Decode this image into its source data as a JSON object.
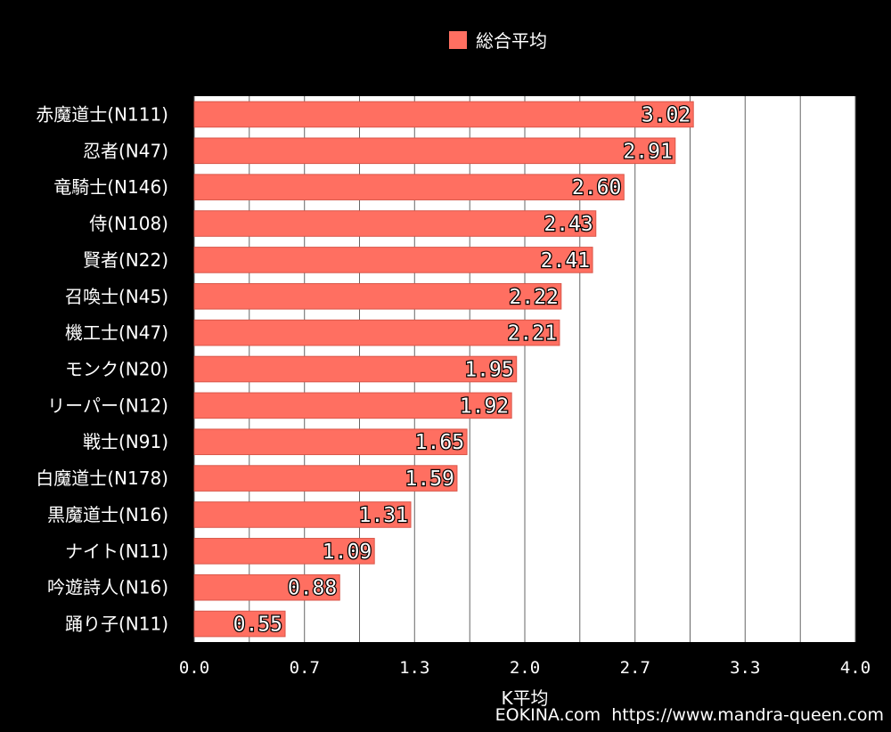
{
  "chart_data": {
    "type": "bar",
    "orientation": "horizontal",
    "categories": [
      "赤魔道士(N111)",
      "忍者(N47)",
      "竜騎士(N146)",
      "侍(N108)",
      "賢者(N22)",
      "召喚士(N45)",
      "機工士(N47)",
      "モンク(N20)",
      "リーパー(N12)",
      "戦士(N91)",
      "白魔道士(N178)",
      "黒魔道士(N16)",
      "ナイト(N11)",
      "吟遊詩人(N16)",
      "踊り子(N11)"
    ],
    "series": [
      {
        "name": "総合平均",
        "values": [
          3.02,
          2.91,
          2.6,
          2.43,
          2.41,
          2.22,
          2.21,
          1.95,
          1.92,
          1.65,
          1.59,
          1.31,
          1.09,
          0.88,
          0.55
        ],
        "labels": [
          "3.02",
          "2.91",
          "2.60",
          "2.43",
          "2.41",
          "2.22",
          "2.21",
          "1.95",
          "1.92",
          "1.65",
          "1.59",
          "1.31",
          "1.09",
          "0.88",
          "0.55"
        ]
      }
    ],
    "xlabel": "K平均",
    "xlim": [
      0,
      4
    ],
    "x_ticks": [
      0,
      0.667,
      1.333,
      2.0,
      2.667,
      3.333,
      4.0
    ],
    "x_tick_labels": [
      "0.0",
      "0.7",
      "1.3",
      "2.0",
      "2.7",
      "3.3",
      "4.0"
    ],
    "x_minor_ticks": [
      0.333,
      1.0,
      1.667,
      2.333,
      3.0,
      3.667
    ],
    "grid": true,
    "legend_position": "top-center",
    "colors": {
      "bar": "#FF6F61",
      "bar_border": "#D9574A",
      "background": "#000000",
      "plot_background": "#FFFFFF",
      "grid": "#666666"
    }
  },
  "legend": {
    "label": "総合平均"
  },
  "footer": {
    "text": "EOKINA.com  https://www.mandra-queen.com"
  }
}
